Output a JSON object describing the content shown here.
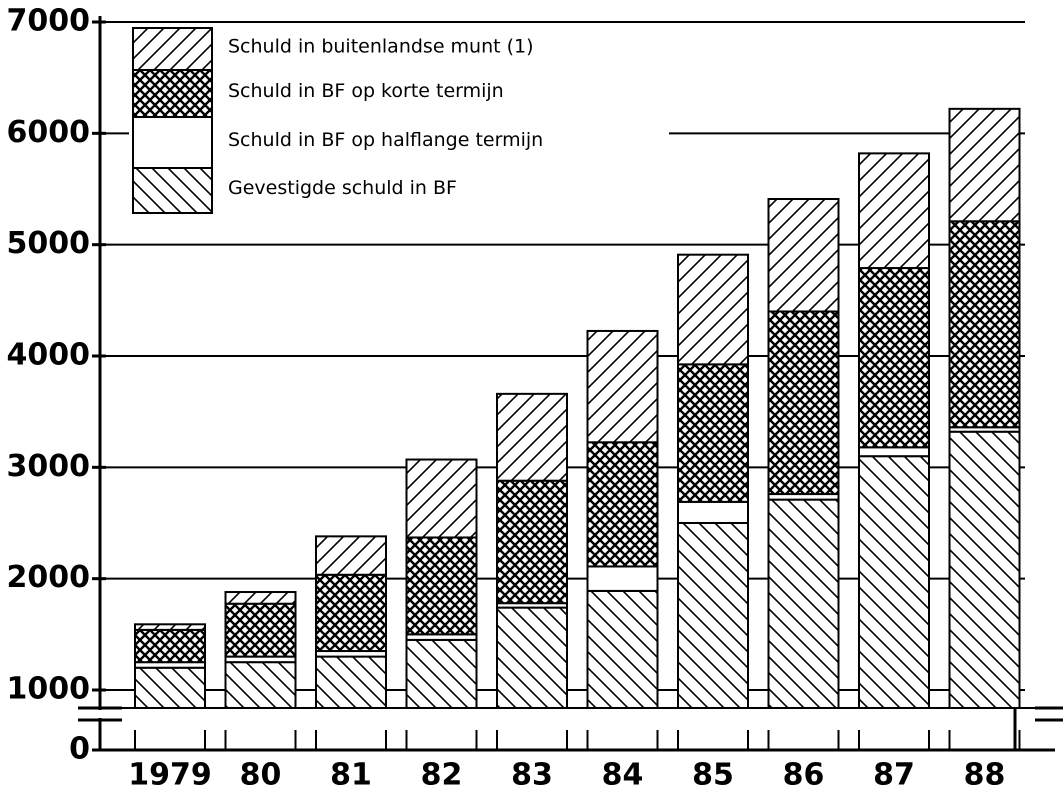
{
  "chart_data": {
    "type": "stacked-bar",
    "categories": [
      "1979",
      "80",
      "81",
      "82",
      "83",
      "84",
      "85",
      "86",
      "87",
      "88"
    ],
    "series": [
      {
        "name": "Gevestigde schuld in BF",
        "color": "#000000",
        "pattern": "back-diagonal",
        "values": [
          1200,
          1250,
          1300,
          1450,
          1740,
          1890,
          2500,
          2710,
          3100,
          3320
        ]
      },
      {
        "name": "Schuld in BF op halflange termijn",
        "color": "#000000",
        "pattern": "none",
        "values": [
          50,
          50,
          50,
          50,
          40,
          220,
          190,
          50,
          80,
          40
        ]
      },
      {
        "name": "Schuld in BF op korte termijn",
        "color": "#000000",
        "pattern": "cross",
        "values": [
          290,
          475,
          685,
          870,
          1100,
          1115,
          1235,
          1640,
          1610,
          1850
        ]
      },
      {
        "name": "Schuld in buitenlandse munt (1)",
        "color": "#000000",
        "pattern": "diagonal",
        "values": [
          50,
          105,
          345,
          700,
          780,
          1000,
          985,
          1010,
          1030,
          1010
        ]
      }
    ],
    "ylim": [
      0,
      7000
    ],
    "yticks": [
      0,
      1000,
      2000,
      3000,
      4000,
      5000,
      6000,
      7000
    ],
    "axis_break": true,
    "legend": "top-left"
  }
}
